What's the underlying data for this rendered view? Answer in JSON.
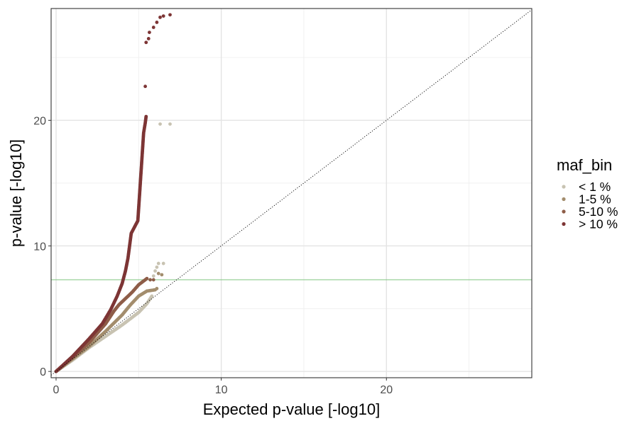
{
  "chart_data": {
    "type": "scatter",
    "xlabel": "Expected p-value [-log10]",
    "ylabel": "p-value [-log10]",
    "xlim": [
      -0.3,
      28.8
    ],
    "ylim": [
      -0.5,
      28.9
    ],
    "x_ticks": [
      0,
      10,
      20
    ],
    "y_ticks": [
      0,
      10,
      20
    ],
    "x_tick_labels": [
      "0",
      "10",
      "20"
    ],
    "y_tick_labels": [
      "0",
      "10",
      "20"
    ],
    "grid": true,
    "reference_lines": {
      "diagonal": {
        "style": "dotted",
        "color": "#000000"
      },
      "significance_y": 7.3,
      "significance_color": "#7fc47f"
    },
    "legend": {
      "title": "maf_bin",
      "position": "right",
      "entries": [
        {
          "label": "< 1 %",
          "color": "#c8c3b2"
        },
        {
          "label": "1-5 %",
          "color": "#a38d6d"
        },
        {
          "label": "5-10 %",
          "color": "#8e5d48"
        },
        {
          "label": "> 10 %",
          "color": "#7d3535"
        }
      ]
    },
    "series": [
      {
        "name": "< 1 %",
        "color": "#c8c3b2",
        "curve": [
          [
            0,
            0
          ],
          [
            1,
            0.9
          ],
          [
            2,
            1.9
          ],
          [
            3,
            2.8
          ],
          [
            4,
            3.7
          ],
          [
            5,
            4.7
          ],
          [
            5.5,
            5.4
          ],
          [
            5.8,
            6.0
          ]
        ],
        "points": [
          [
            5.9,
            7.6
          ],
          [
            6.0,
            8.0
          ],
          [
            6.1,
            8.3
          ],
          [
            6.2,
            8.6
          ],
          [
            6.5,
            8.6
          ],
          [
            6.3,
            19.7
          ],
          [
            6.9,
            19.7
          ]
        ]
      },
      {
        "name": "1-5 %",
        "color": "#a38d6d",
        "curve": [
          [
            0,
            0
          ],
          [
            1,
            1.0
          ],
          [
            2,
            2.0
          ],
          [
            3,
            3.2
          ],
          [
            4,
            4.5
          ],
          [
            4.5,
            5.3
          ],
          [
            5,
            6.0
          ],
          [
            5.5,
            6.4
          ],
          [
            6,
            6.5
          ]
        ],
        "points": [
          [
            6.1,
            6.6
          ],
          [
            6.2,
            7.8
          ],
          [
            6.4,
            7.7
          ]
        ]
      },
      {
        "name": "5-10 %",
        "color": "#8e5d48",
        "curve": [
          [
            0,
            0
          ],
          [
            1,
            1.1
          ],
          [
            2,
            2.3
          ],
          [
            3,
            3.8
          ],
          [
            3.5,
            4.8
          ],
          [
            3.8,
            5.3
          ],
          [
            4.2,
            5.8
          ],
          [
            4.6,
            6.3
          ],
          [
            5,
            6.9
          ],
          [
            5.5,
            7.4
          ]
        ],
        "points": [
          [
            5.7,
            7.3
          ],
          [
            5.9,
            7.3
          ]
        ]
      },
      {
        "name": "> 10 %",
        "color": "#7d3535",
        "curve": [
          [
            0,
            0
          ],
          [
            1,
            1.2
          ],
          [
            2,
            2.6
          ],
          [
            2.8,
            3.8
          ],
          [
            3.3,
            4.9
          ],
          [
            3.7,
            6.0
          ],
          [
            4.0,
            7.0
          ],
          [
            4.2,
            8.0
          ],
          [
            4.35,
            9.0
          ],
          [
            4.45,
            10.0
          ],
          [
            4.55,
            11.0
          ],
          [
            4.75,
            11.5
          ],
          [
            4.95,
            12.0
          ],
          [
            5.0,
            13.0
          ],
          [
            5.05,
            14.0
          ],
          [
            5.1,
            15.0
          ],
          [
            5.15,
            16.0
          ],
          [
            5.2,
            17.0
          ],
          [
            5.25,
            18.0
          ],
          [
            5.3,
            19.0
          ],
          [
            5.4,
            19.8
          ],
          [
            5.45,
            20.3
          ]
        ],
        "points": [
          [
            5.4,
            22.7
          ],
          [
            5.45,
            26.2
          ],
          [
            5.6,
            26.5
          ],
          [
            5.65,
            27.0
          ],
          [
            5.9,
            27.4
          ],
          [
            6.1,
            27.8
          ],
          [
            6.3,
            28.2
          ],
          [
            6.5,
            28.3
          ],
          [
            6.9,
            28.4
          ]
        ]
      }
    ]
  }
}
